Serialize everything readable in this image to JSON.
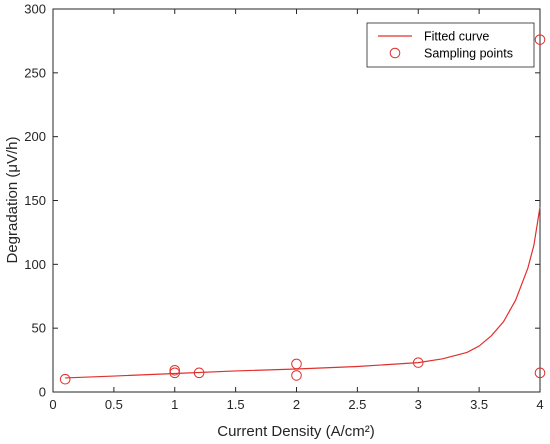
{
  "chart_data": {
    "type": "scatter",
    "xlabel": "Current Density (A/cm²)",
    "ylabel": "Degradation (μV/h)",
    "xlim": [
      0,
      4
    ],
    "ylim": [
      0,
      300
    ],
    "xticks": [
      0,
      0.5,
      1,
      1.5,
      2,
      2.5,
      3,
      3.5,
      4
    ],
    "xtick_labels": [
      "0",
      "0.5",
      "1",
      "1.5",
      "2",
      "2.5",
      "3",
      "3.5",
      "4"
    ],
    "yticks": [
      0,
      50,
      100,
      150,
      200,
      250,
      300
    ],
    "ytick_labels": [
      "0",
      "50",
      "100",
      "150",
      "200",
      "250",
      "300"
    ],
    "grid": false,
    "legend_position": "top-right",
    "series": [
      {
        "name": "Fitted curve",
        "kind": "line",
        "color": "#e0302e",
        "x": [
          0.1,
          0.5,
          1.0,
          1.5,
          2.0,
          2.5,
          3.0,
          3.2,
          3.4,
          3.5,
          3.6,
          3.7,
          3.8,
          3.9,
          3.95,
          4.0
        ],
        "y": [
          11,
          12.5,
          14.5,
          16.5,
          18,
          20,
          23,
          26,
          31,
          36,
          44,
          55,
          72,
          97,
          115,
          145
        ]
      },
      {
        "name": "Sampling points",
        "kind": "scatter",
        "color": "#e0302e",
        "x": [
          0.1,
          1.0,
          1.0,
          1.2,
          2.0,
          2.0,
          3.0,
          4.0,
          4.0
        ],
        "y": [
          10,
          15,
          17,
          15,
          22,
          13,
          23,
          276,
          15
        ]
      }
    ]
  }
}
